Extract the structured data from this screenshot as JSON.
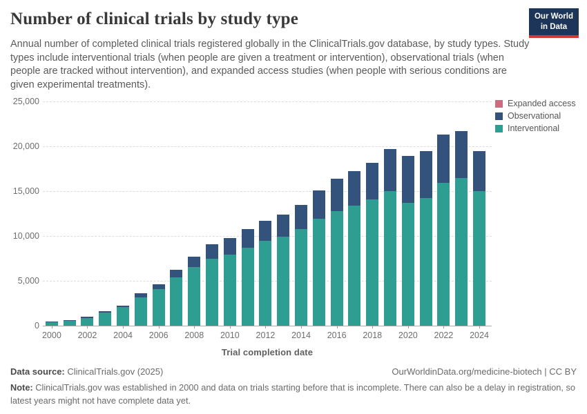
{
  "header": {
    "title": "Number of clinical trials by study type",
    "subtitle": "Annual number of completed clinical trials registered globally in the ClinicalTrials.gov database, by study types. Study types include interventional trials (when people are given a treatment or intervention), observational trials (when people are tracked without intervention), and expanded access studies (when people with serious conditions are given experimental treatments).",
    "logo": {
      "line1": "Our World",
      "line2": "in Data",
      "bg_color": "#1d3558",
      "stripe_color": "#cf3a32"
    }
  },
  "legend": [
    {
      "label": "Expanded access",
      "color": "#d06a7e"
    },
    {
      "label": "Observational",
      "color": "#33527c"
    },
    {
      "label": "Interventional",
      "color": "#2f9e92"
    }
  ],
  "chart_data": {
    "type": "bar",
    "stacked": true,
    "title": "Number of clinical trials by study type",
    "xlabel": "Trial completion date",
    "ylabel": "",
    "ylim": [
      0,
      25000
    ],
    "grid": "horizontal-dashed",
    "legend_position": "top-right",
    "yticks": [
      {
        "value": 0,
        "label": "0"
      },
      {
        "value": 5000,
        "label": "5,000"
      },
      {
        "value": 10000,
        "label": "10,000"
      },
      {
        "value": 15000,
        "label": "15,000"
      },
      {
        "value": 20000,
        "label": "20,000"
      },
      {
        "value": 25000,
        "label": "25,000"
      }
    ],
    "xtick_label_interval": 2,
    "categories": [
      2000,
      2001,
      2002,
      2003,
      2004,
      2005,
      2006,
      2007,
      2008,
      2009,
      2010,
      2011,
      2012,
      2013,
      2014,
      2015,
      2016,
      2017,
      2018,
      2019,
      2020,
      2021,
      2022,
      2023,
      2024
    ],
    "series": [
      {
        "name": "Interventional",
        "color": "#2f9e92",
        "values": [
          360,
          560,
          860,
          1440,
          2070,
          3160,
          4100,
          5350,
          6550,
          7500,
          7900,
          8700,
          9500,
          9950,
          10800,
          11900,
          12800,
          13400,
          14100,
          15000,
          13700,
          14200,
          15950,
          16500,
          15000
        ]
      },
      {
        "name": "Observational",
        "color": "#33527c",
        "values": [
          70,
          80,
          130,
          140,
          200,
          480,
          500,
          850,
          1150,
          1550,
          1900,
          2100,
          2200,
          2450,
          2700,
          3150,
          3550,
          3850,
          4050,
          4700,
          5200,
          5300,
          5350,
          5200,
          4500
        ]
      },
      {
        "name": "Expanded access",
        "color": "#d06a7e",
        "values": [
          0,
          0,
          0,
          0,
          0,
          0,
          0,
          0,
          0,
          0,
          0,
          0,
          0,
          0,
          0,
          0,
          0,
          0,
          0,
          0,
          0,
          0,
          0,
          0,
          0
        ]
      }
    ]
  },
  "footer": {
    "source_label": "Data source:",
    "source_value": " ClinicalTrials.gov (2025)",
    "rights": "OurWorldinData.org/medicine-biotech | CC BY",
    "note_label": "Note:",
    "note_text": " ClinicalTrials.gov was established in 2000 and data on trials starting before that is incomplete. There can also be a delay in registration, so latest years might not have complete data yet."
  }
}
